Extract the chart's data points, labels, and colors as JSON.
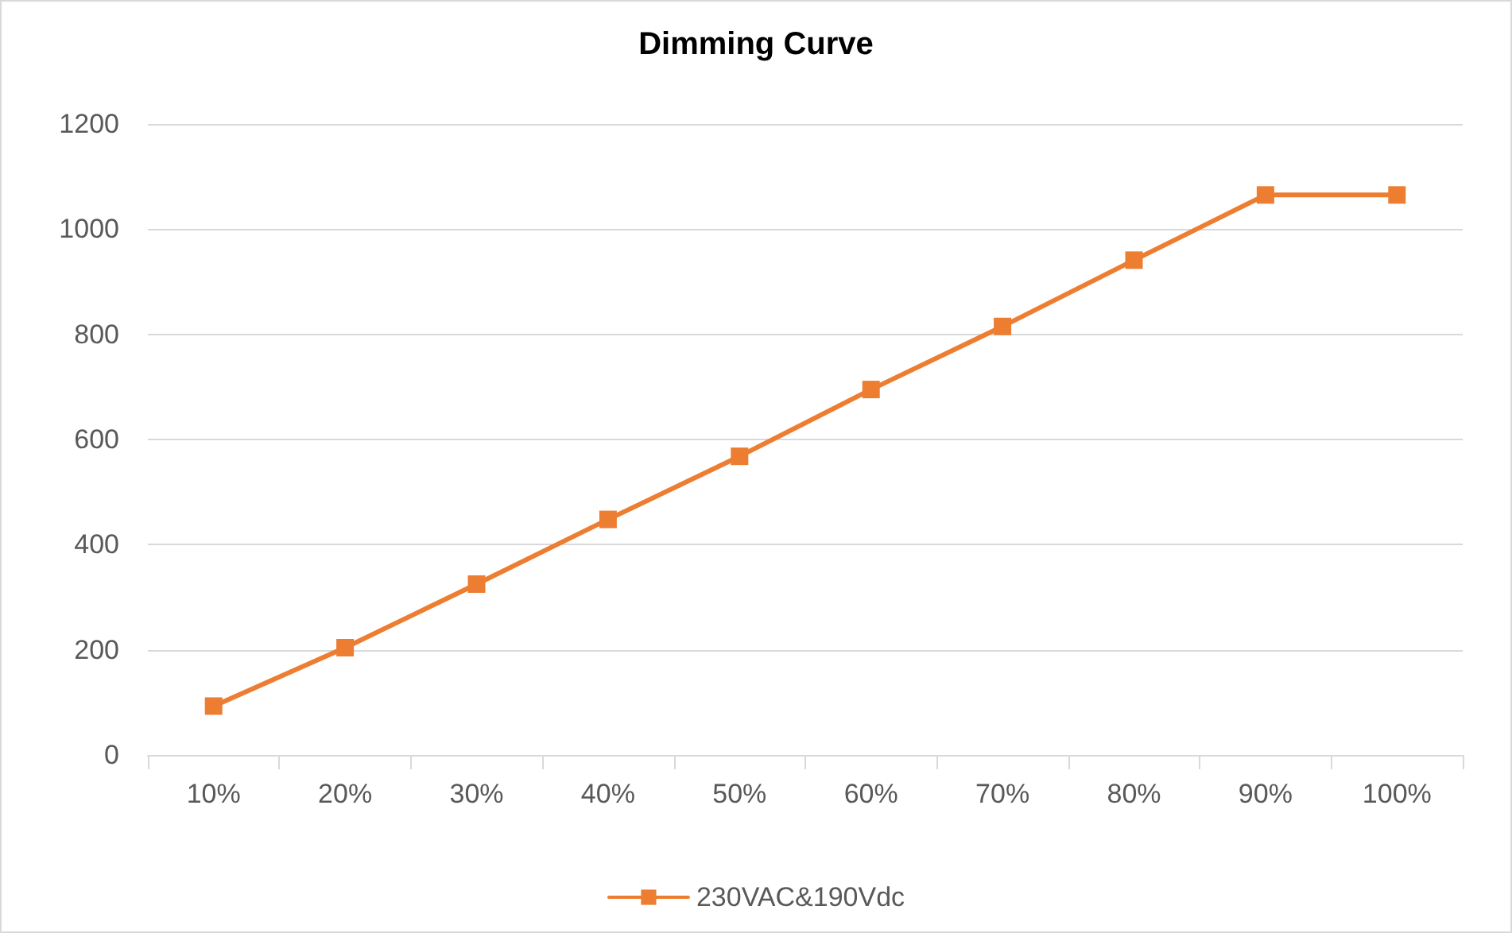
{
  "chart_data": {
    "type": "line",
    "title": "Dimming Curve",
    "categories": [
      "10%",
      "20%",
      "30%",
      "40%",
      "50%",
      "60%",
      "70%",
      "80%",
      "90%",
      "100%"
    ],
    "series": [
      {
        "name": "230VAC&190Vdc",
        "color": "#ed7d31",
        "values": [
          93,
          204,
          325,
          448,
          568,
          695,
          815,
          941,
          1065,
          1065
        ]
      }
    ],
    "ylim": [
      0,
      1200
    ],
    "yticks": [
      0,
      200,
      400,
      600,
      800,
      1000,
      1200
    ],
    "grid": "y",
    "legend": "bottom",
    "marker": "square",
    "line_style": "solid"
  }
}
